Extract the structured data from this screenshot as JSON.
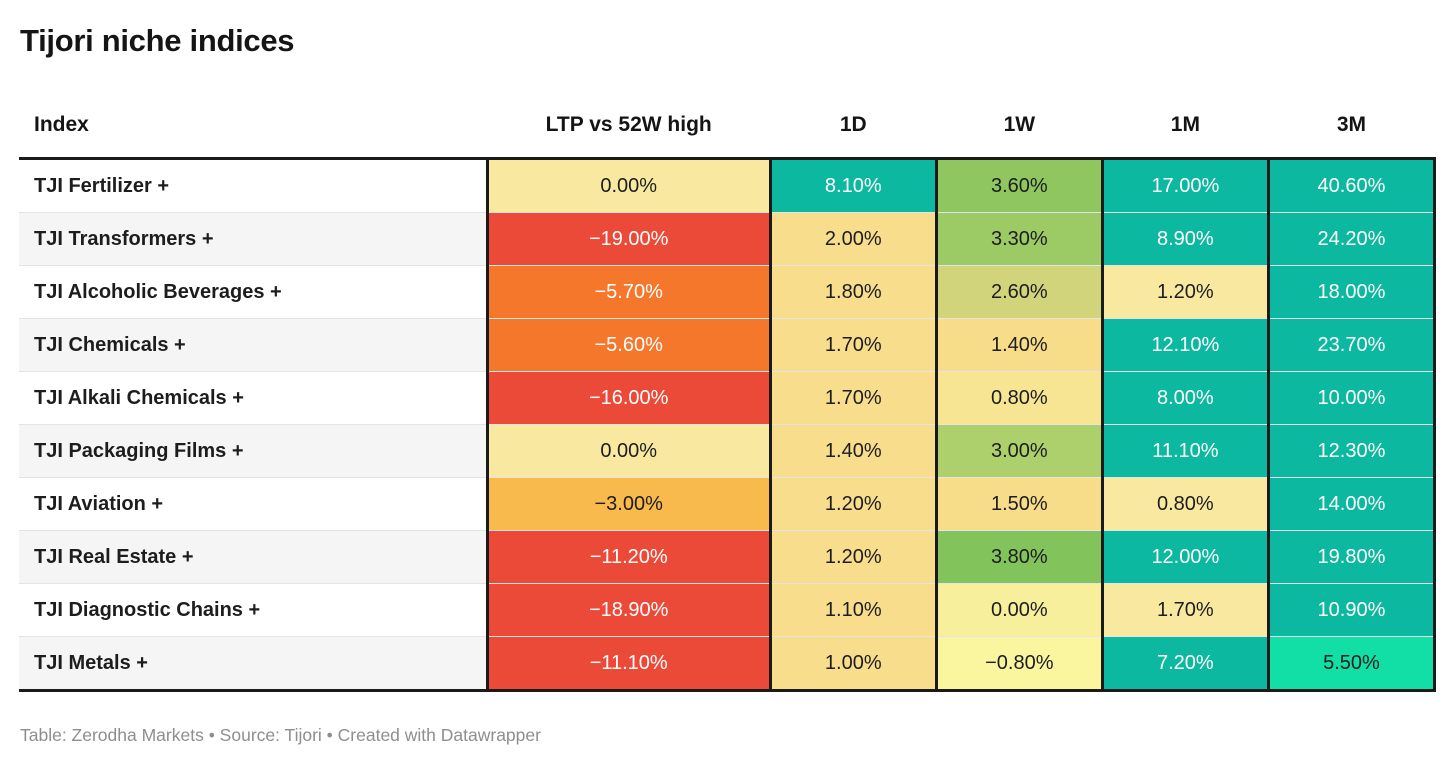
{
  "title": "Tijori niche indices",
  "footer": "Table: Zerodha Markets • Source: Tijori • Created with Datawrapper",
  "colors": {
    "teal": "#0CB8A0",
    "mint": "#12DFA5",
    "red": "#EC4A39",
    "orange": "#F4772B",
    "amber": "#F8B94D",
    "pale_yellow": "#F9E9A0",
    "tan": "#F8DD8C",
    "green_strong": "#82C35C",
    "green": "#8FC65F",
    "green_mid": "#9CCA64",
    "green_light": "#ADCF6C",
    "yellow_green": "#D2D47B",
    "header_border": "#1a1a1a",
    "row_line": "#e4e4e4",
    "stripe": "#f5f5f5",
    "dark_text": "#1d1d1d",
    "white_text": "#ffffff",
    "footer_text": "#8e8e8e"
  },
  "table": {
    "columns": [
      "Index",
      "LTP vs 52W high",
      "1D",
      "1W",
      "1M",
      "3M"
    ],
    "rows": [
      {
        "index": "TJI Fertilizer +",
        "cells": [
          {
            "text": "0.00%",
            "bg": "#F9E9A0",
            "fg": "#1d1d1d"
          },
          {
            "text": "8.10%",
            "bg": "#0CB8A0",
            "fg": "#ffffff"
          },
          {
            "text": "3.60%",
            "bg": "#8FC65F",
            "fg": "#1d1d1d"
          },
          {
            "text": "17.00%",
            "bg": "#0CB8A0",
            "fg": "#ffffff"
          },
          {
            "text": "40.60%",
            "bg": "#0CB8A0",
            "fg": "#ffffff"
          }
        ]
      },
      {
        "index": "TJI Transformers +",
        "cells": [
          {
            "text": "−19.00%",
            "bg": "#EC4A39",
            "fg": "#ffffff"
          },
          {
            "text": "2.00%",
            "bg": "#F8DD8C",
            "fg": "#1d1d1d"
          },
          {
            "text": "3.30%",
            "bg": "#9CCA64",
            "fg": "#1d1d1d"
          },
          {
            "text": "8.90%",
            "bg": "#0CB8A0",
            "fg": "#ffffff"
          },
          {
            "text": "24.20%",
            "bg": "#0CB8A0",
            "fg": "#ffffff"
          }
        ]
      },
      {
        "index": "TJI Alcoholic Beverages +",
        "cells": [
          {
            "text": "−5.70%",
            "bg": "#F4772B",
            "fg": "#ffffff"
          },
          {
            "text": "1.80%",
            "bg": "#F8DD8C",
            "fg": "#1d1d1d"
          },
          {
            "text": "2.60%",
            "bg": "#D2D47B",
            "fg": "#1d1d1d"
          },
          {
            "text": "1.20%",
            "bg": "#F9E9A0",
            "fg": "#1d1d1d"
          },
          {
            "text": "18.00%",
            "bg": "#0CB8A0",
            "fg": "#ffffff"
          }
        ]
      },
      {
        "index": "TJI Chemicals +",
        "cells": [
          {
            "text": "−5.60%",
            "bg": "#F4772B",
            "fg": "#ffffff"
          },
          {
            "text": "1.70%",
            "bg": "#F8DD8C",
            "fg": "#1d1d1d"
          },
          {
            "text": "1.40%",
            "bg": "#F7DD89",
            "fg": "#1d1d1d"
          },
          {
            "text": "12.10%",
            "bg": "#0CB8A0",
            "fg": "#ffffff"
          },
          {
            "text": "23.70%",
            "bg": "#0CB8A0",
            "fg": "#ffffff"
          }
        ]
      },
      {
        "index": "TJI Alkali Chemicals +",
        "cells": [
          {
            "text": "−16.00%",
            "bg": "#EC4A39",
            "fg": "#ffffff"
          },
          {
            "text": "1.70%",
            "bg": "#F8DD8C",
            "fg": "#1d1d1d"
          },
          {
            "text": "0.80%",
            "bg": "#F8E593",
            "fg": "#1d1d1d"
          },
          {
            "text": "8.00%",
            "bg": "#0CB8A0",
            "fg": "#ffffff"
          },
          {
            "text": "10.00%",
            "bg": "#0CB8A0",
            "fg": "#ffffff"
          }
        ]
      },
      {
        "index": "TJI Packaging Films +",
        "cells": [
          {
            "text": "0.00%",
            "bg": "#F9E9A0",
            "fg": "#1d1d1d"
          },
          {
            "text": "1.40%",
            "bg": "#F8DD8C",
            "fg": "#1d1d1d"
          },
          {
            "text": "3.00%",
            "bg": "#ADCF6C",
            "fg": "#1d1d1d"
          },
          {
            "text": "11.10%",
            "bg": "#0CB8A0",
            "fg": "#ffffff"
          },
          {
            "text": "12.30%",
            "bg": "#0CB8A0",
            "fg": "#ffffff"
          }
        ]
      },
      {
        "index": "TJI Aviation +",
        "cells": [
          {
            "text": "−3.00%",
            "bg": "#F8B94D",
            "fg": "#1d1d1d"
          },
          {
            "text": "1.20%",
            "bg": "#F8DD8C",
            "fg": "#1d1d1d"
          },
          {
            "text": "1.50%",
            "bg": "#F7DD89",
            "fg": "#1d1d1d"
          },
          {
            "text": "0.80%",
            "bg": "#F9E9A0",
            "fg": "#1d1d1d"
          },
          {
            "text": "14.00%",
            "bg": "#0CB8A0",
            "fg": "#ffffff"
          }
        ]
      },
      {
        "index": "TJI Real Estate +",
        "cells": [
          {
            "text": "−11.20%",
            "bg": "#EC4A39",
            "fg": "#ffffff"
          },
          {
            "text": "1.20%",
            "bg": "#F8DD8C",
            "fg": "#1d1d1d"
          },
          {
            "text": "3.80%",
            "bg": "#82C35C",
            "fg": "#1d1d1d"
          },
          {
            "text": "12.00%",
            "bg": "#0CB8A0",
            "fg": "#ffffff"
          },
          {
            "text": "19.80%",
            "bg": "#0CB8A0",
            "fg": "#ffffff"
          }
        ]
      },
      {
        "index": "TJI Diagnostic Chains +",
        "cells": [
          {
            "text": "−18.90%",
            "bg": "#EC4A39",
            "fg": "#ffffff"
          },
          {
            "text": "1.10%",
            "bg": "#F8DD8C",
            "fg": "#1d1d1d"
          },
          {
            "text": "0.00%",
            "bg": "#F7EF9B",
            "fg": "#1d1d1d"
          },
          {
            "text": "1.70%",
            "bg": "#F9E9A0",
            "fg": "#1d1d1d"
          },
          {
            "text": "10.90%",
            "bg": "#0CB8A0",
            "fg": "#ffffff"
          }
        ]
      },
      {
        "index": "TJI Metals +",
        "cells": [
          {
            "text": "−11.10%",
            "bg": "#EC4A39",
            "fg": "#ffffff"
          },
          {
            "text": "1.00%",
            "bg": "#F8DD8C",
            "fg": "#1d1d1d"
          },
          {
            "text": "−0.80%",
            "bg": "#F9F69F",
            "fg": "#1d1d1d"
          },
          {
            "text": "7.20%",
            "bg": "#0CB8A0",
            "fg": "#ffffff"
          },
          {
            "text": "5.50%",
            "bg": "#12DFA5",
            "fg": "#1d1d1d"
          }
        ]
      }
    ]
  },
  "chart_data": {
    "type": "table",
    "title": "Tijori niche indices",
    "unit": "percent",
    "columns": [
      "Index",
      "LTP vs 52W high",
      "1D",
      "1W",
      "1M",
      "3M"
    ],
    "rows": [
      [
        "TJI Fertilizer +",
        0.0,
        8.1,
        3.6,
        17.0,
        40.6
      ],
      [
        "TJI Transformers +",
        -19.0,
        2.0,
        3.3,
        8.9,
        24.2
      ],
      [
        "TJI Alcoholic Beverages +",
        -5.7,
        1.8,
        2.6,
        1.2,
        18.0
      ],
      [
        "TJI Chemicals +",
        -5.6,
        1.7,
        1.4,
        12.1,
        23.7
      ],
      [
        "TJI Alkali Chemicals +",
        -16.0,
        1.7,
        0.8,
        8.0,
        10.0
      ],
      [
        "TJI Packaging Films +",
        0.0,
        1.4,
        3.0,
        11.1,
        12.3
      ],
      [
        "TJI Aviation +",
        -3.0,
        1.2,
        1.5,
        0.8,
        14.0
      ],
      [
        "TJI Real Estate +",
        -11.2,
        1.2,
        3.8,
        12.0,
        19.8
      ],
      [
        "TJI Diagnostic Chains +",
        -18.9,
        1.1,
        0.0,
        1.7,
        10.9
      ],
      [
        "TJI Metals +",
        -11.1,
        1.0,
        -0.8,
        7.2,
        5.5
      ]
    ],
    "color_encoding": "cell background heatmap: red = negative, yellow = near zero, green/teal = positive",
    "footer": "Table: Zerodha Markets • Source: Tijori • Created with Datawrapper"
  }
}
